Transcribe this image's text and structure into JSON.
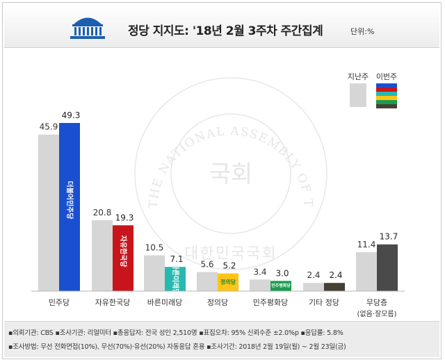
{
  "header": {
    "title": "정당 지지도: '18년 2월 3주차 주간집계",
    "unit": "단위:%"
  },
  "watermark": {
    "ring_text": "THE NATIONAL ASSEMBLY OF THE REPUBLIC OF KOREA",
    "center_text": "국회",
    "bottom_text": "대한민국국회"
  },
  "colors": {
    "last_week": "#d6d6d6",
    "minjoo": "#1a4fcf",
    "liberty": "#c8151b",
    "bareun": "#27b9b0",
    "justice": "#ffc514",
    "peace": "#1c9c4e",
    "other": "#454030",
    "none": "#4a4a4a"
  },
  "chart_data": {
    "type": "bar",
    "categories": [
      "민주당",
      "자유한국당",
      "바른미래당",
      "정의당",
      "민주평화당",
      "기타 정당",
      "무당층"
    ],
    "category_sublabels": [
      "",
      "",
      "",
      "",
      "",
      "",
      "(없음·잘모름)"
    ],
    "series": [
      {
        "name": "지난주",
        "values": [
          45.9,
          20.8,
          10.5,
          5.6,
          3.4,
          2.4,
          11.4
        ]
      },
      {
        "name": "이번주",
        "values": [
          49.3,
          19.3,
          7.1,
          5.2,
          3.0,
          2.4,
          13.7
        ]
      }
    ],
    "value_labels": {
      "last": [
        "45.9",
        "20.8",
        "10.5",
        "5.6",
        "3.4",
        "2.4",
        "11.4"
      ],
      "this": [
        "49.3",
        "19.3",
        "7.1",
        "5.2",
        "3.0",
        "2.4",
        "13.7"
      ]
    },
    "party_logos": [
      "더불어민주당",
      "자유한국당",
      "바른미래당",
      "정의당",
      "민주평화당",
      "",
      ""
    ],
    "ylim": [
      0,
      55
    ],
    "legend": {
      "position": "top-right",
      "items": [
        "지난주",
        "이번주"
      ]
    }
  },
  "footer": {
    "line1": "▪의뢰기관: CBS  ▪조사기관: 리얼미터  ▪총응답자: 전국 성인 2,510명  ▪표집오차: 95% 신뢰수준 ±2.0%p  ▪응답률: 5.8%",
    "line2": "▪조사방법: 무선 전화면접(10%), 무선(70%)·유선(20%) 자동응답 혼용  ▪조사기간: 2018년 2월 19일(월) ~ 2월 23일(금)"
  }
}
